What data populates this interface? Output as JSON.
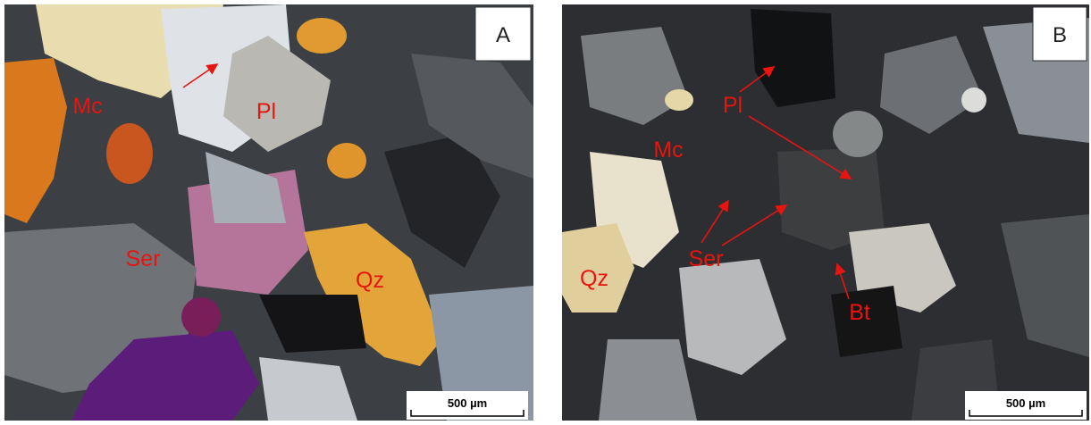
{
  "panels": [
    {
      "label": "A",
      "annotations": [
        "Mc",
        "Pl",
        "Ser",
        "Qz"
      ],
      "scale_bar": "500 µm"
    },
    {
      "label": "B",
      "annotations": [
        "Pl",
        "Mc",
        "Ser",
        "Qz",
        "Bt"
      ],
      "scale_bar": "500 µm"
    }
  ]
}
